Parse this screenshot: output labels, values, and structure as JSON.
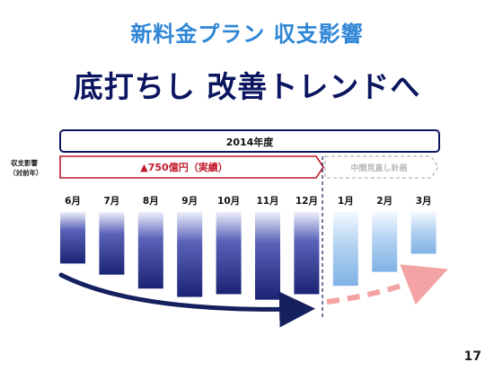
{
  "slide": {
    "subtitle": "新料金プラン 収支影響",
    "title": "底打ちし 改善トレンドへ",
    "page_number": "17"
  },
  "chart_data": {
    "type": "bar",
    "period_label": "2014年度",
    "row_label_lines": [
      "収支影響",
      "（対前年）"
    ],
    "actual_label": "▲750億円（実績）",
    "plan_label": "中間見直し計画",
    "categories": [
      "6月",
      "7月",
      "8月",
      "9月",
      "10月",
      "11月",
      "12月",
      "1月",
      "2月",
      "3月"
    ],
    "values": [
      -37,
      -45,
      -55,
      -61,
      -59,
      -63,
      -59,
      -53,
      -43,
      -30
    ],
    "value_scale_note": "",
    "series": [
      {
        "name": "実績",
        "range": [
          0,
          6
        ],
        "color": "#1f2c85"
      },
      {
        "name": "中間見直し計画",
        "range": [
          7,
          9
        ],
        "color": "#8dbbe8"
      }
    ],
    "trend_actual_color": "#15205f",
    "trend_plan_color": "#f3a3a3",
    "accent_red": "#c0192b",
    "frame_navy": "#0b1560",
    "plan_gray": "#b5b5b5"
  }
}
